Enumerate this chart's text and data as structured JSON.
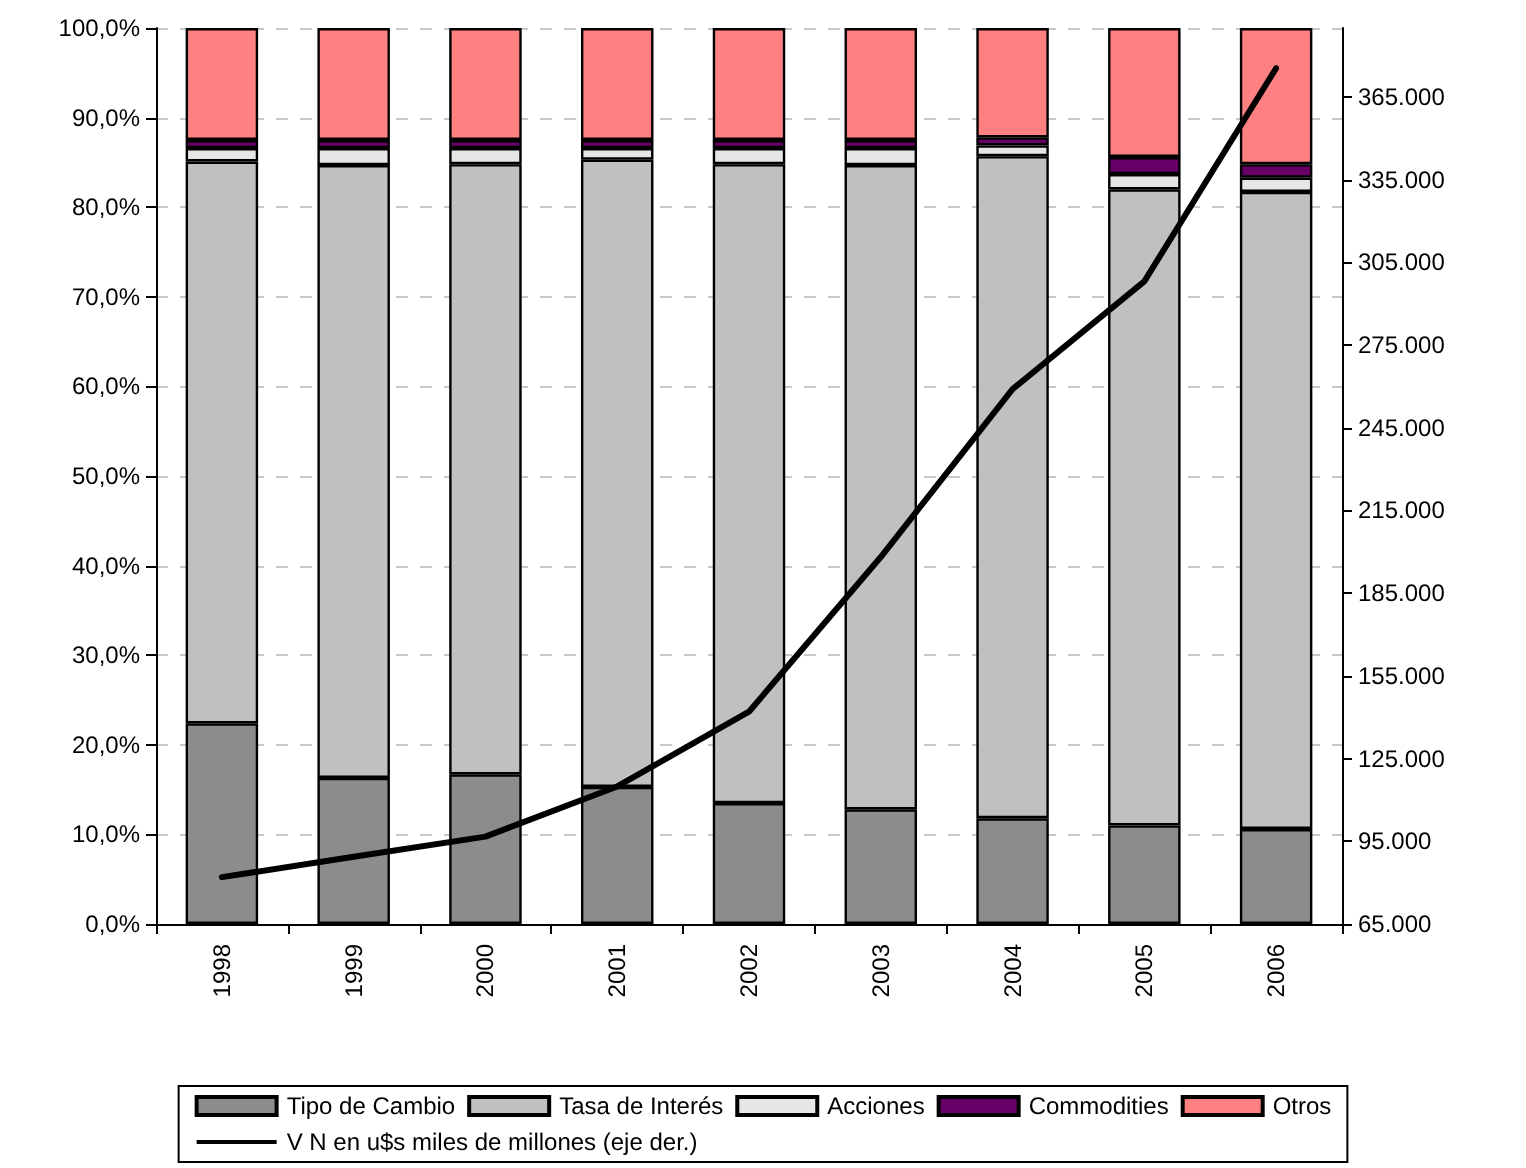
{
  "chart_data": {
    "type": "bar",
    "stacked": true,
    "categories": [
      "1998",
      "1999",
      "2000",
      "2001",
      "2002",
      "2003",
      "2004",
      "2005",
      "2006"
    ],
    "series": [
      {
        "name": "Tipo de Cambio",
        "color": "#8c8c8c",
        "values": [
          22.4,
          16.3,
          16.7,
          15.3,
          13.5,
          12.8,
          11.8,
          11.0,
          10.6
        ]
      },
      {
        "name": "Tasa de Interés",
        "color": "#c0c0c0",
        "values": [
          62.7,
          68.4,
          68.1,
          70.0,
          71.3,
          71.9,
          73.9,
          71.0,
          71.1
        ]
      },
      {
        "name": "Acciones",
        "color": "#e6e6e6",
        "values": [
          1.5,
          1.9,
          1.8,
          1.3,
          1.8,
          1.9,
          1.2,
          1.7,
          1.6
        ]
      },
      {
        "name": "Commodities",
        "color": "#660066",
        "values": [
          0.9,
          0.9,
          0.9,
          0.9,
          0.9,
          0.9,
          0.9,
          1.9,
          1.5
        ]
      },
      {
        "name": "Otros",
        "color": "#ff8080",
        "values": [
          12.5,
          12.5,
          12.5,
          12.5,
          12.5,
          12.5,
          12.2,
          14.4,
          15.2
        ]
      },
      {
        "name": "V N en u$s miles de millones (eje der.)",
        "type": "line",
        "axis": "y2",
        "color": "#000000",
        "marker": "none",
        "line_style": "solid",
        "values": [
          82000,
          89400,
          96700,
          114900,
          142000,
          198100,
          259000,
          298100,
          375400
        ]
      }
    ],
    "ylim": [
      0,
      100
    ],
    "yticks": [
      {
        "value": 0,
        "label": "0,0%"
      },
      {
        "value": 10,
        "label": "10,0%"
      },
      {
        "value": 20,
        "label": "20,0%"
      },
      {
        "value": 30,
        "label": "30,0%"
      },
      {
        "value": 40,
        "label": "40,0%"
      },
      {
        "value": 50,
        "label": "50,0%"
      },
      {
        "value": 60,
        "label": "60,0%"
      },
      {
        "value": 70,
        "label": "70,0%"
      },
      {
        "value": 80,
        "label": "80,0%"
      },
      {
        "value": 90,
        "label": "90,0%"
      },
      {
        "value": 100,
        "label": "100,0%"
      }
    ],
    "y2lim": [
      65000,
      390000
    ],
    "y2ticks": [
      {
        "value": 65000,
        "label": "65.000"
      },
      {
        "value": 95000,
        "label": "95.000"
      },
      {
        "value": 125000,
        "label": "125.000"
      },
      {
        "value": 155000,
        "label": "155.000"
      },
      {
        "value": 185000,
        "label": "185.000"
      },
      {
        "value": 215000,
        "label": "215.000"
      },
      {
        "value": 245000,
        "label": "245.000"
      },
      {
        "value": 275000,
        "label": "275.000"
      },
      {
        "value": 305000,
        "label": "305.000"
      },
      {
        "value": 335000,
        "label": "335.000"
      },
      {
        "value": 365000,
        "label": "365.000"
      }
    ],
    "grid": "y",
    "legend": "bottom"
  }
}
